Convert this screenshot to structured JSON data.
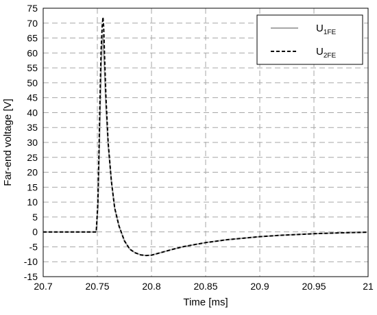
{
  "chart_data": {
    "type": "line",
    "title": "",
    "xlabel": "Time [ms]",
    "ylabel": "Far-end voltage [V]",
    "xlim": [
      20.7,
      21.0
    ],
    "ylim": [
      -15,
      75
    ],
    "xticks": [
      "20.7",
      "20.75",
      "20.8",
      "20.85",
      "20.9",
      "20.95",
      "21"
    ],
    "xtick_values": [
      20.7,
      20.75,
      20.8,
      20.85,
      20.9,
      20.95,
      21.0
    ],
    "yticks": [
      "75",
      "70",
      "65",
      "60",
      "55",
      "50",
      "45",
      "40",
      "35",
      "30",
      "25",
      "20",
      "15",
      "10",
      "5",
      "0",
      "-5",
      "-10",
      "-15"
    ],
    "ytick_values": [
      75,
      70,
      65,
      60,
      55,
      50,
      45,
      40,
      35,
      30,
      25,
      20,
      15,
      10,
      5,
      0,
      -5,
      -10,
      -15
    ],
    "grid": true,
    "legend_position": "top-right",
    "series": [
      {
        "name": "U",
        "name_sub": "1FE",
        "color": "#a6a6a6",
        "style": "solid",
        "x": [
          20.7,
          20.749,
          20.7505,
          20.7515,
          20.7525,
          20.7535,
          20.7545,
          20.755,
          20.7555,
          20.7565,
          20.758,
          20.76,
          20.763,
          20.766,
          20.77,
          20.775,
          20.78,
          20.785,
          20.79,
          20.795,
          20.8,
          20.81,
          20.82,
          20.83,
          20.85,
          20.87,
          20.9,
          20.92,
          20.95,
          20.97,
          21.0
        ],
        "y": [
          0,
          0,
          8,
          23,
          40,
          55,
          64,
          66,
          64,
          55,
          42,
          29,
          17,
          8,
          2,
          -3,
          -5.8,
          -7,
          -7.7,
          -7.9,
          -7.8,
          -6.8,
          -5.8,
          -4.9,
          -3.6,
          -2.6,
          -1.6,
          -1.1,
          -0.6,
          -0.35,
          -0.1
        ]
      },
      {
        "name": "U",
        "name_sub": "2FE",
        "color": "#000000",
        "style": "dashed",
        "x": [
          20.7,
          20.749,
          20.7505,
          20.7515,
          20.7525,
          20.7535,
          20.7545,
          20.7552,
          20.7558,
          20.7568,
          20.758,
          20.76,
          20.763,
          20.766,
          20.77,
          20.775,
          20.78,
          20.785,
          20.79,
          20.795,
          20.8,
          20.81,
          20.82,
          20.83,
          20.85,
          20.87,
          20.9,
          20.92,
          20.95,
          20.97,
          21.0
        ],
        "y": [
          0,
          0,
          10,
          27,
          46,
          61,
          69,
          72,
          69,
          58,
          45,
          30,
          17,
          8,
          2,
          -3,
          -5.8,
          -7,
          -7.7,
          -7.9,
          -7.8,
          -6.8,
          -5.8,
          -4.9,
          -3.6,
          -2.6,
          -1.6,
          -1.1,
          -0.6,
          -0.35,
          -0.1
        ]
      }
    ]
  }
}
